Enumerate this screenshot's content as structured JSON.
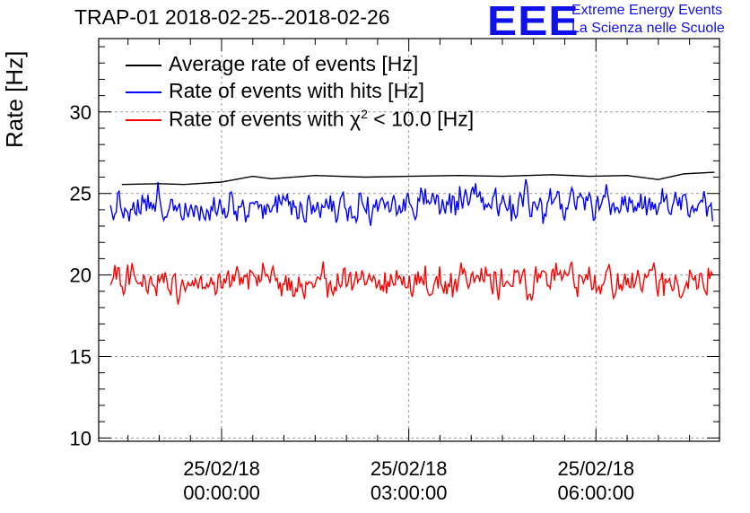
{
  "header": {
    "title": "TRAP-01 2018-02-25--2018-02-26",
    "logo_text": "EEE",
    "logo_line1": "Extreme Energy Events",
    "logo_line2": "La Scienza nelle Scuole"
  },
  "chart_data": {
    "type": "line",
    "title": "TRAP-01 2018-02-25--2018-02-26",
    "ylabel": "Rate [Hz]",
    "xlabel": "",
    "ylim": [
      9.8,
      34.5
    ],
    "xlim_hours": [
      -1.97,
      7.98
    ],
    "grid": true,
    "legend_position": "top-left",
    "x_ticks": [
      {
        "hour": 0,
        "date": "25/02/18",
        "time": "00:00:00"
      },
      {
        "hour": 3,
        "date": "25/02/18",
        "time": "03:00:00"
      },
      {
        "hour": 6,
        "date": "25/02/18",
        "time": "06:00:00"
      }
    ],
    "y_ticks": [
      10,
      15,
      20,
      25,
      30
    ],
    "series": [
      {
        "name": "Average rate of events [Hz]",
        "color": "#000000",
        "points": [
          [
            -1.6,
            25.55
          ],
          [
            -1.0,
            25.6
          ],
          [
            -0.6,
            25.55
          ],
          [
            0.0,
            25.7
          ],
          [
            0.5,
            26.05
          ],
          [
            0.8,
            25.9
          ],
          [
            1.5,
            26.1
          ],
          [
            2.3,
            26.0
          ],
          [
            3.0,
            26.05
          ],
          [
            3.8,
            26.1
          ],
          [
            4.5,
            26.05
          ],
          [
            5.3,
            26.15
          ],
          [
            5.9,
            26.05
          ],
          [
            6.5,
            26.1
          ],
          [
            7.0,
            25.85
          ],
          [
            7.4,
            26.2
          ],
          [
            7.9,
            26.3
          ]
        ]
      },
      {
        "name": "Rate of events with hits [Hz]",
        "color": "#0000ff",
        "start_hour": -1.78,
        "end_hour": 7.87,
        "samples": 420,
        "mean": 24.3,
        "amplitude": 0.75,
        "min": 22.6,
        "max": 26.3
      },
      {
        "name": "Rate of events with χ² < 10.0 [Hz]",
        "label_prefix": "Rate of events with ",
        "label_symbol": "χ",
        "label_exponent": "2",
        "label_suffix": " < 10.0 [Hz]",
        "color": "#ff0000",
        "start_hour": -1.78,
        "end_hour": 7.87,
        "samples": 420,
        "mean": 19.6,
        "amplitude": 0.7,
        "min": 17.9,
        "max": 21.3
      }
    ]
  }
}
